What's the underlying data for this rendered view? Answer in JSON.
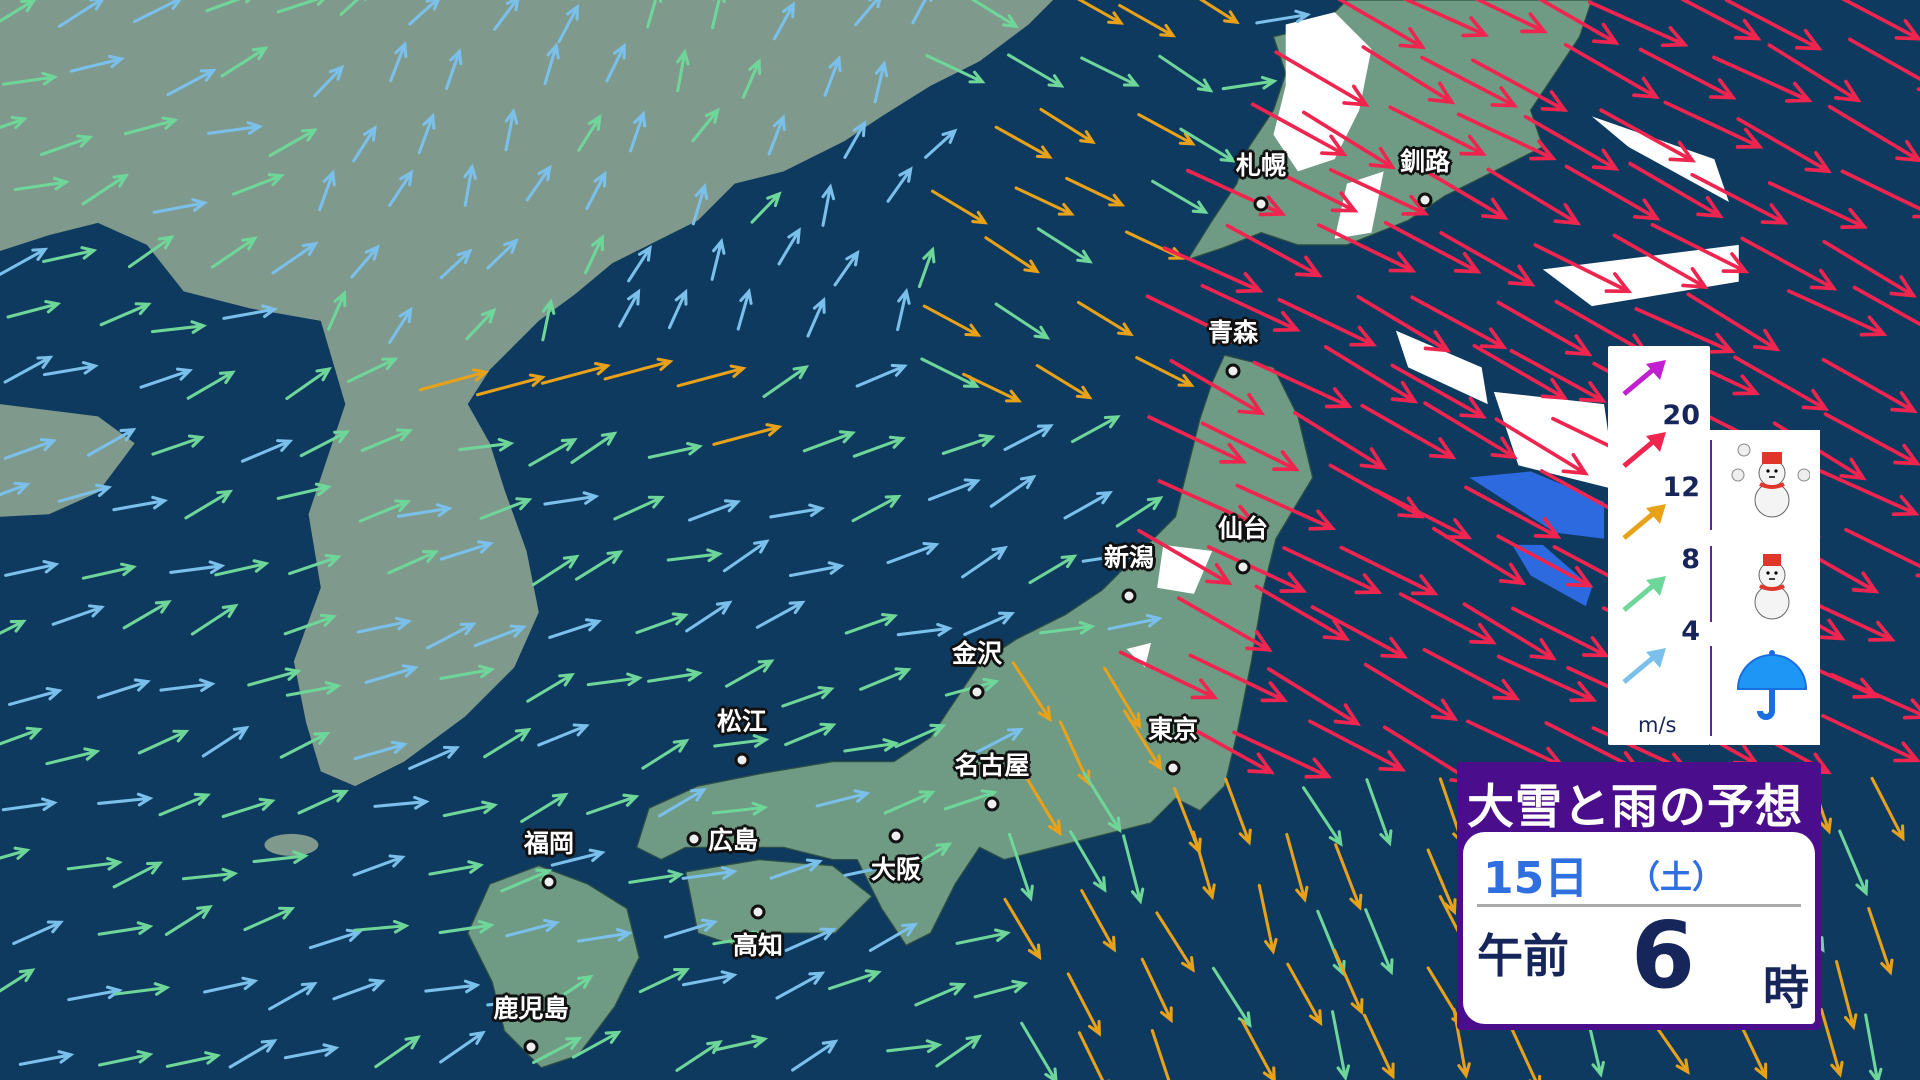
{
  "title": "大雪と雨の予想",
  "datetime": {
    "date": "15日",
    "weekday": "（土）",
    "ampm": "午前",
    "hour": "6",
    "hour_suffix": "時"
  },
  "legend": {
    "unit": "m/s",
    "speeds": [
      {
        "value": "20",
        "color": "#c21fd0"
      },
      {
        "value": "12",
        "color": "#f0254f"
      },
      {
        "value": "8",
        "color": "#e8a21a"
      },
      {
        "value": "4",
        "color": "#6fd69a"
      },
      {
        "value": "",
        "color": "#7ac0ea"
      }
    ],
    "weather_icons": [
      "heavy-snow-snowman-icon",
      "snow-snowman-icon",
      "rain-umbrella-icon"
    ]
  },
  "cities": [
    {
      "name": "札幌",
      "label": "above"
    },
    {
      "name": "釧路",
      "label": "above"
    },
    {
      "name": "青森",
      "label": "above"
    },
    {
      "name": "仙台",
      "label": "above"
    },
    {
      "name": "新潟",
      "label": "above"
    },
    {
      "name": "金沢",
      "label": "above"
    },
    {
      "name": "東京",
      "label": "above"
    },
    {
      "name": "名古屋",
      "label": "above"
    },
    {
      "name": "松江",
      "label": "above"
    },
    {
      "name": "広島",
      "label": "right"
    },
    {
      "name": "大阪",
      "label": "below"
    },
    {
      "name": "福岡",
      "label": "above"
    },
    {
      "name": "高知",
      "label": "below"
    },
    {
      "name": "鹿児島",
      "label": "above"
    }
  ],
  "colors": {
    "sea": "#0f3a5f",
    "land_japan": "#6f9a84",
    "land_asia": "#7f9a8c",
    "snow": "#ffffff",
    "rain": "#2d6ae0",
    "panel_purple": "#4a0d8c"
  }
}
